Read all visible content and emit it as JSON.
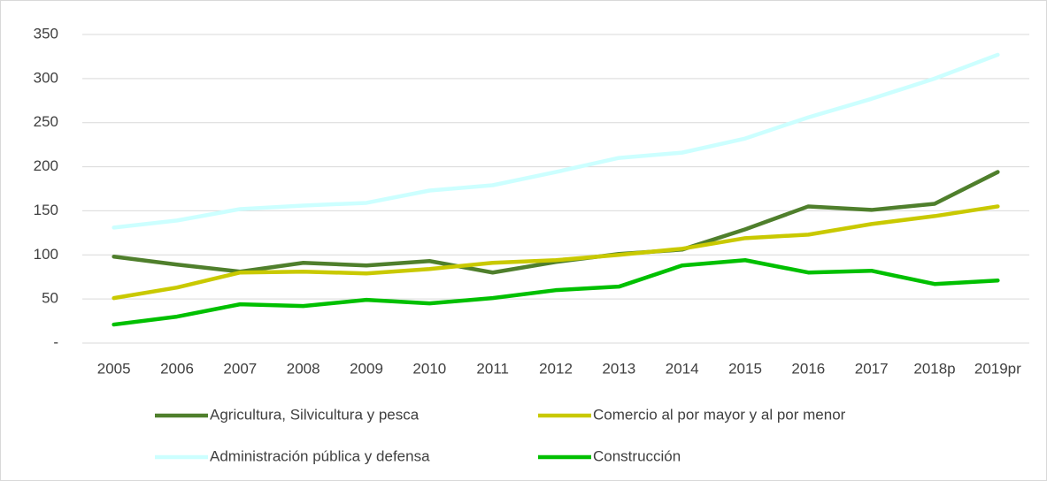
{
  "chart_data": {
    "type": "line",
    "categories": [
      "2005",
      "2006",
      "2007",
      "2008",
      "2009",
      "2010",
      "2011",
      "2012",
      "2013",
      "2014",
      "2015",
      "2016",
      "2017",
      "2018p",
      "2019pr"
    ],
    "series": [
      {
        "name": "Agricultura, Silvicultura y pesca",
        "color": "#4f7f2c",
        "values": [
          98,
          89,
          81,
          91,
          88,
          93,
          80,
          92,
          101,
          106,
          129,
          155,
          151,
          158,
          194
        ]
      },
      {
        "name": "Comercio al por mayor y al por menor",
        "color": "#c9c900",
        "values": [
          51,
          63,
          80,
          81,
          79,
          84,
          91,
          94,
          100,
          107,
          119,
          123,
          135,
          144,
          155
        ]
      },
      {
        "name": "Administración pública y defensa",
        "color": "#ccffff",
        "values": [
          131,
          139,
          152,
          156,
          159,
          173,
          179,
          194,
          210,
          216,
          232,
          256,
          277,
          300,
          327
        ]
      },
      {
        "name": "Construcción",
        "color": "#00c000",
        "values": [
          21,
          30,
          44,
          42,
          49,
          45,
          51,
          60,
          64,
          88,
          94,
          80,
          82,
          67,
          71
        ]
      }
    ],
    "ylim": [
      0,
      350
    ],
    "yticks": [
      {
        "value": 0,
        "label": "-"
      },
      50,
      100,
      150,
      200,
      250,
      300,
      350
    ],
    "grid": true,
    "legend": "bottom"
  }
}
